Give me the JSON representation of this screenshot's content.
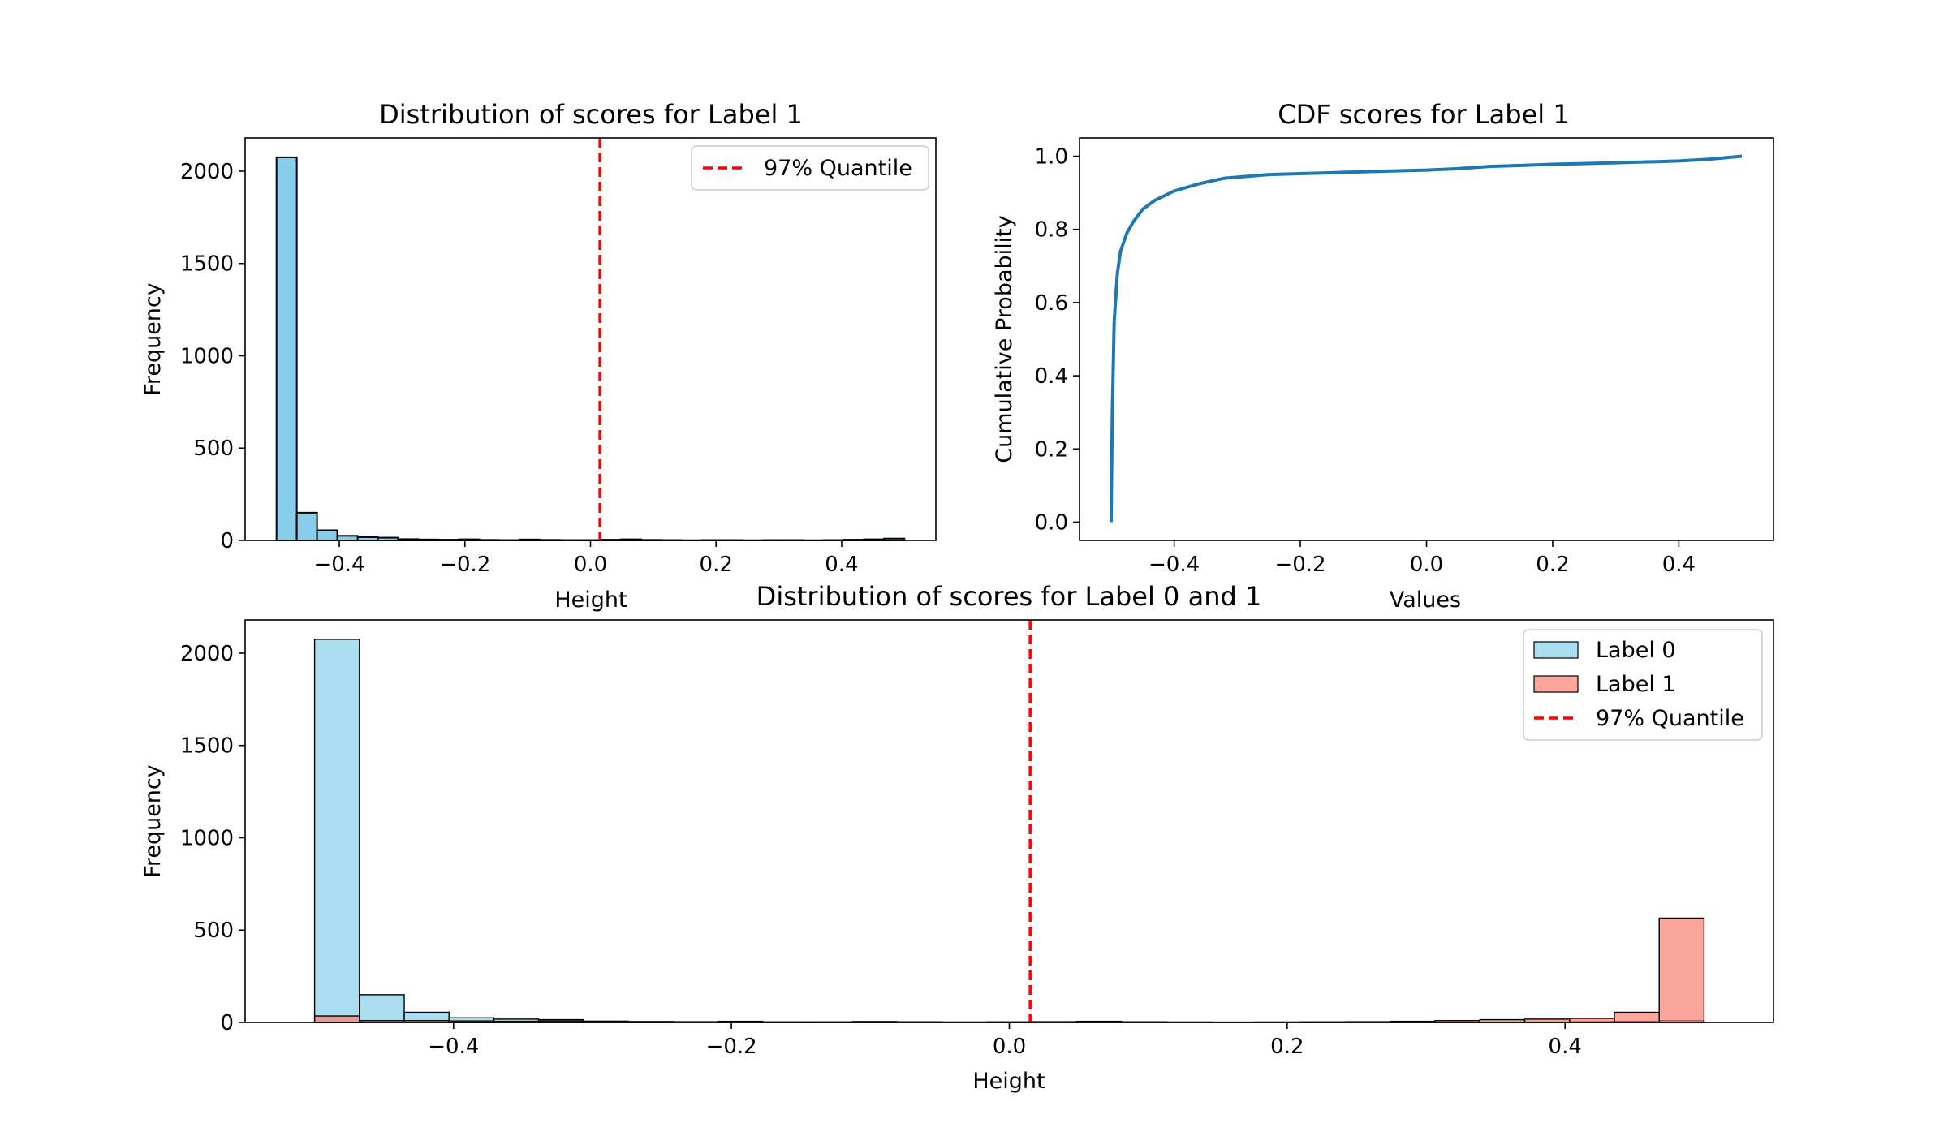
{
  "chart_data": [
    {
      "type": "bar",
      "title": "Distribution of scores for Label 1",
      "xlabel": "Height",
      "ylabel": "Frequency",
      "xlim": [
        -0.55,
        0.55
      ],
      "ylim": [
        0,
        2180
      ],
      "xticks": [
        "−0.4",
        "−0.2",
        "0.0",
        "0.2",
        "0.4"
      ],
      "xtick_values": [
        -0.4,
        -0.2,
        0.0,
        0.2,
        0.4
      ],
      "yticks": [
        "0",
        "500",
        "1000",
        "1500",
        "2000"
      ],
      "ytick_values": [
        0,
        500,
        1000,
        1500,
        2000
      ],
      "bin_range": [
        -0.5,
        0.5
      ],
      "values": [
        2075,
        150,
        55,
        25,
        18,
        15,
        7,
        5,
        4,
        6,
        3,
        2,
        5,
        3,
        2,
        2,
        4,
        6,
        3,
        2,
        1,
        2,
        2,
        1,
        2,
        2,
        1,
        2,
        4,
        6,
        10
      ],
      "bar_color": "#87CEEB",
      "quantile_line": {
        "x": 0.015,
        "label": "97% Quantile",
        "color": "#FF0000"
      },
      "legend_position": "upper right",
      "grid": false
    },
    {
      "type": "line",
      "title": "CDF scores for Label 1",
      "xlabel": "Values",
      "ylabel": "Cumulative Probability",
      "xlim": [
        -0.55,
        0.55
      ],
      "ylim": [
        -0.05,
        1.05
      ],
      "xticks": [
        "−0.4",
        "−0.2",
        "0.0",
        "0.2",
        "0.4"
      ],
      "xtick_values": [
        -0.4,
        -0.2,
        0.0,
        0.2,
        0.4
      ],
      "yticks": [
        "0.0",
        "0.2",
        "0.4",
        "0.6",
        "0.8",
        "1.0"
      ],
      "ytick_values": [
        0.0,
        0.2,
        0.4,
        0.6,
        0.8,
        1.0
      ],
      "x": [
        -0.5,
        -0.498,
        -0.495,
        -0.49,
        -0.485,
        -0.475,
        -0.465,
        -0.45,
        -0.43,
        -0.4,
        -0.36,
        -0.32,
        -0.25,
        -0.15,
        -0.05,
        0.0,
        0.05,
        0.1,
        0.15,
        0.2,
        0.3,
        0.4,
        0.45,
        0.5
      ],
      "y": [
        0.0,
        0.3,
        0.55,
        0.68,
        0.74,
        0.79,
        0.82,
        0.855,
        0.88,
        0.905,
        0.925,
        0.94,
        0.95,
        0.955,
        0.96,
        0.962,
        0.966,
        0.972,
        0.975,
        0.978,
        0.982,
        0.987,
        0.992,
        1.0
      ],
      "line_color": "#1F77B4",
      "grid": false
    },
    {
      "type": "bar",
      "title": "Distribution of scores for Label 0 and 1",
      "xlabel": "Height",
      "ylabel": "Frequency",
      "xlim": [
        -0.55,
        0.55
      ],
      "ylim": [
        0,
        2180
      ],
      "xticks": [
        "−0.4",
        "−0.2",
        "0.0",
        "0.2",
        "0.4"
      ],
      "xtick_values": [
        -0.4,
        -0.2,
        0.0,
        0.2,
        0.4
      ],
      "yticks": [
        "0",
        "500",
        "1000",
        "1500",
        "2000"
      ],
      "ytick_values": [
        0,
        500,
        1000,
        1500,
        2000
      ],
      "bin_range": [
        -0.5,
        0.5
      ],
      "series": [
        {
          "name": "Label 0",
          "color": "#87CEEB",
          "values": [
            2075,
            150,
            55,
            25,
            18,
            15,
            7,
            5,
            4,
            6,
            3,
            2,
            5,
            3,
            2,
            2,
            4,
            6,
            3,
            2,
            1,
            2,
            2,
            1,
            2,
            2,
            1,
            2,
            4,
            6,
            10
          ]
        },
        {
          "name": "Label 1",
          "color": "#FA8072",
          "values": [
            35,
            10,
            10,
            8,
            6,
            8,
            4,
            3,
            3,
            3,
            2,
            3,
            3,
            3,
            2,
            3,
            3,
            3,
            3,
            2,
            2,
            2,
            3,
            4,
            6,
            10,
            15,
            18,
            22,
            55,
            565
          ]
        }
      ],
      "quantile_line": {
        "x": 0.015,
        "label": "97% Quantile",
        "color": "#FF0000"
      },
      "legend_position": "upper right",
      "grid": false
    }
  ]
}
